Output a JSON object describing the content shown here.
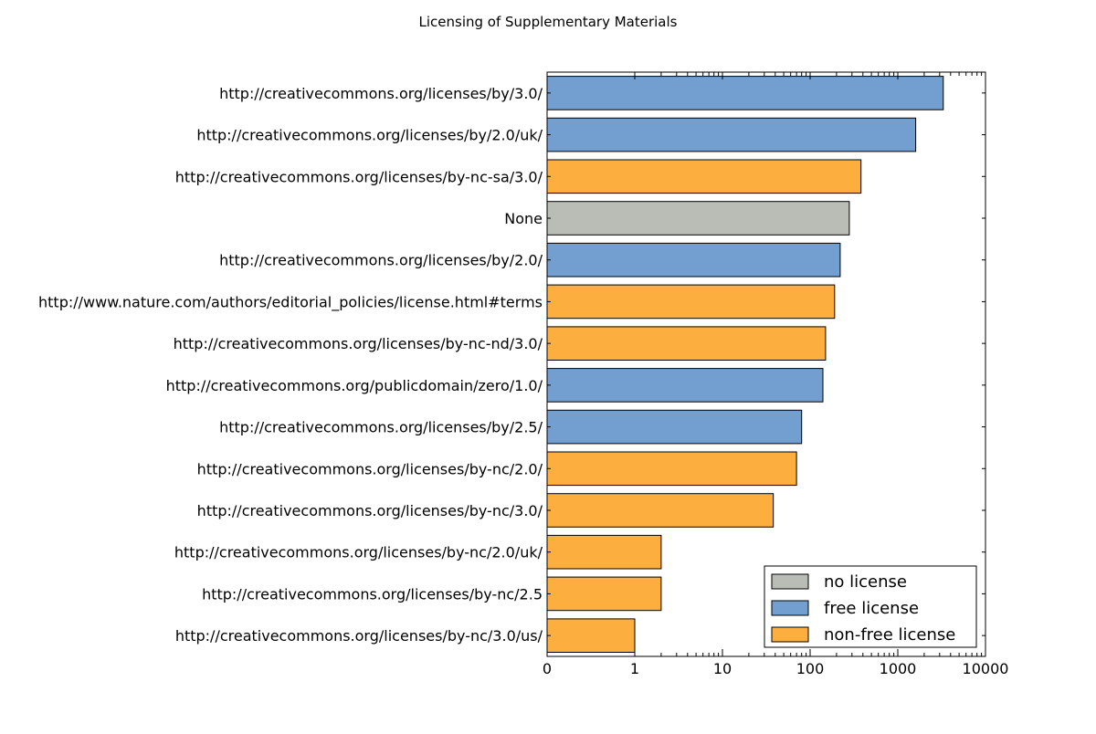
{
  "chart_data": {
    "type": "bar",
    "orientation": "horizontal",
    "title": "Licensing of Supplementary Materials",
    "xlabel": "",
    "ylabel": "",
    "x_scale": "symlog",
    "xlim": [
      0,
      10000
    ],
    "x_ticks": [
      0,
      1,
      10,
      100,
      1000,
      10000
    ],
    "x_tick_labels": [
      "0",
      "1",
      "10",
      "100",
      "1000",
      "10000"
    ],
    "grid": false,
    "legend_position": "lower-right",
    "categories": [
      "http://creativecommons.org/licenses/by/3.0/",
      "http://creativecommons.org/licenses/by/2.0/uk/",
      "http://creativecommons.org/licenses/by-nc-sa/3.0/",
      "None",
      "http://creativecommons.org/licenses/by/2.0/",
      "http://www.nature.com/authors/editorial_policies/license.html#terms",
      "http://creativecommons.org/licenses/by-nc-nd/3.0/",
      "http://creativecommons.org/publicdomain/zero/1.0/",
      "http://creativecommons.org/licenses/by/2.5/",
      "http://creativecommons.org/licenses/by-nc/2.0/",
      "http://creativecommons.org/licenses/by-nc/3.0/",
      "http://creativecommons.org/licenses/by-nc/2.0/uk/",
      "http://creativecommons.org/licenses/by-nc/2.5",
      "http://creativecommons.org/licenses/by-nc/3.0/us/"
    ],
    "values": [
      3300,
      1600,
      380,
      280,
      220,
      190,
      150,
      140,
      80,
      70,
      38,
      2,
      2,
      1
    ],
    "license_class": [
      "free",
      "free",
      "non-free",
      "none",
      "free",
      "non-free",
      "non-free",
      "free",
      "free",
      "non-free",
      "non-free",
      "non-free",
      "non-free",
      "non-free"
    ],
    "legend": [
      {
        "key": "none",
        "label": "no license",
        "color": "#babdb6"
      },
      {
        "key": "free",
        "label": "free license",
        "color": "#729fcf"
      },
      {
        "key": "non-free",
        "label": "non-free license",
        "color": "#fcaf3e"
      }
    ]
  }
}
